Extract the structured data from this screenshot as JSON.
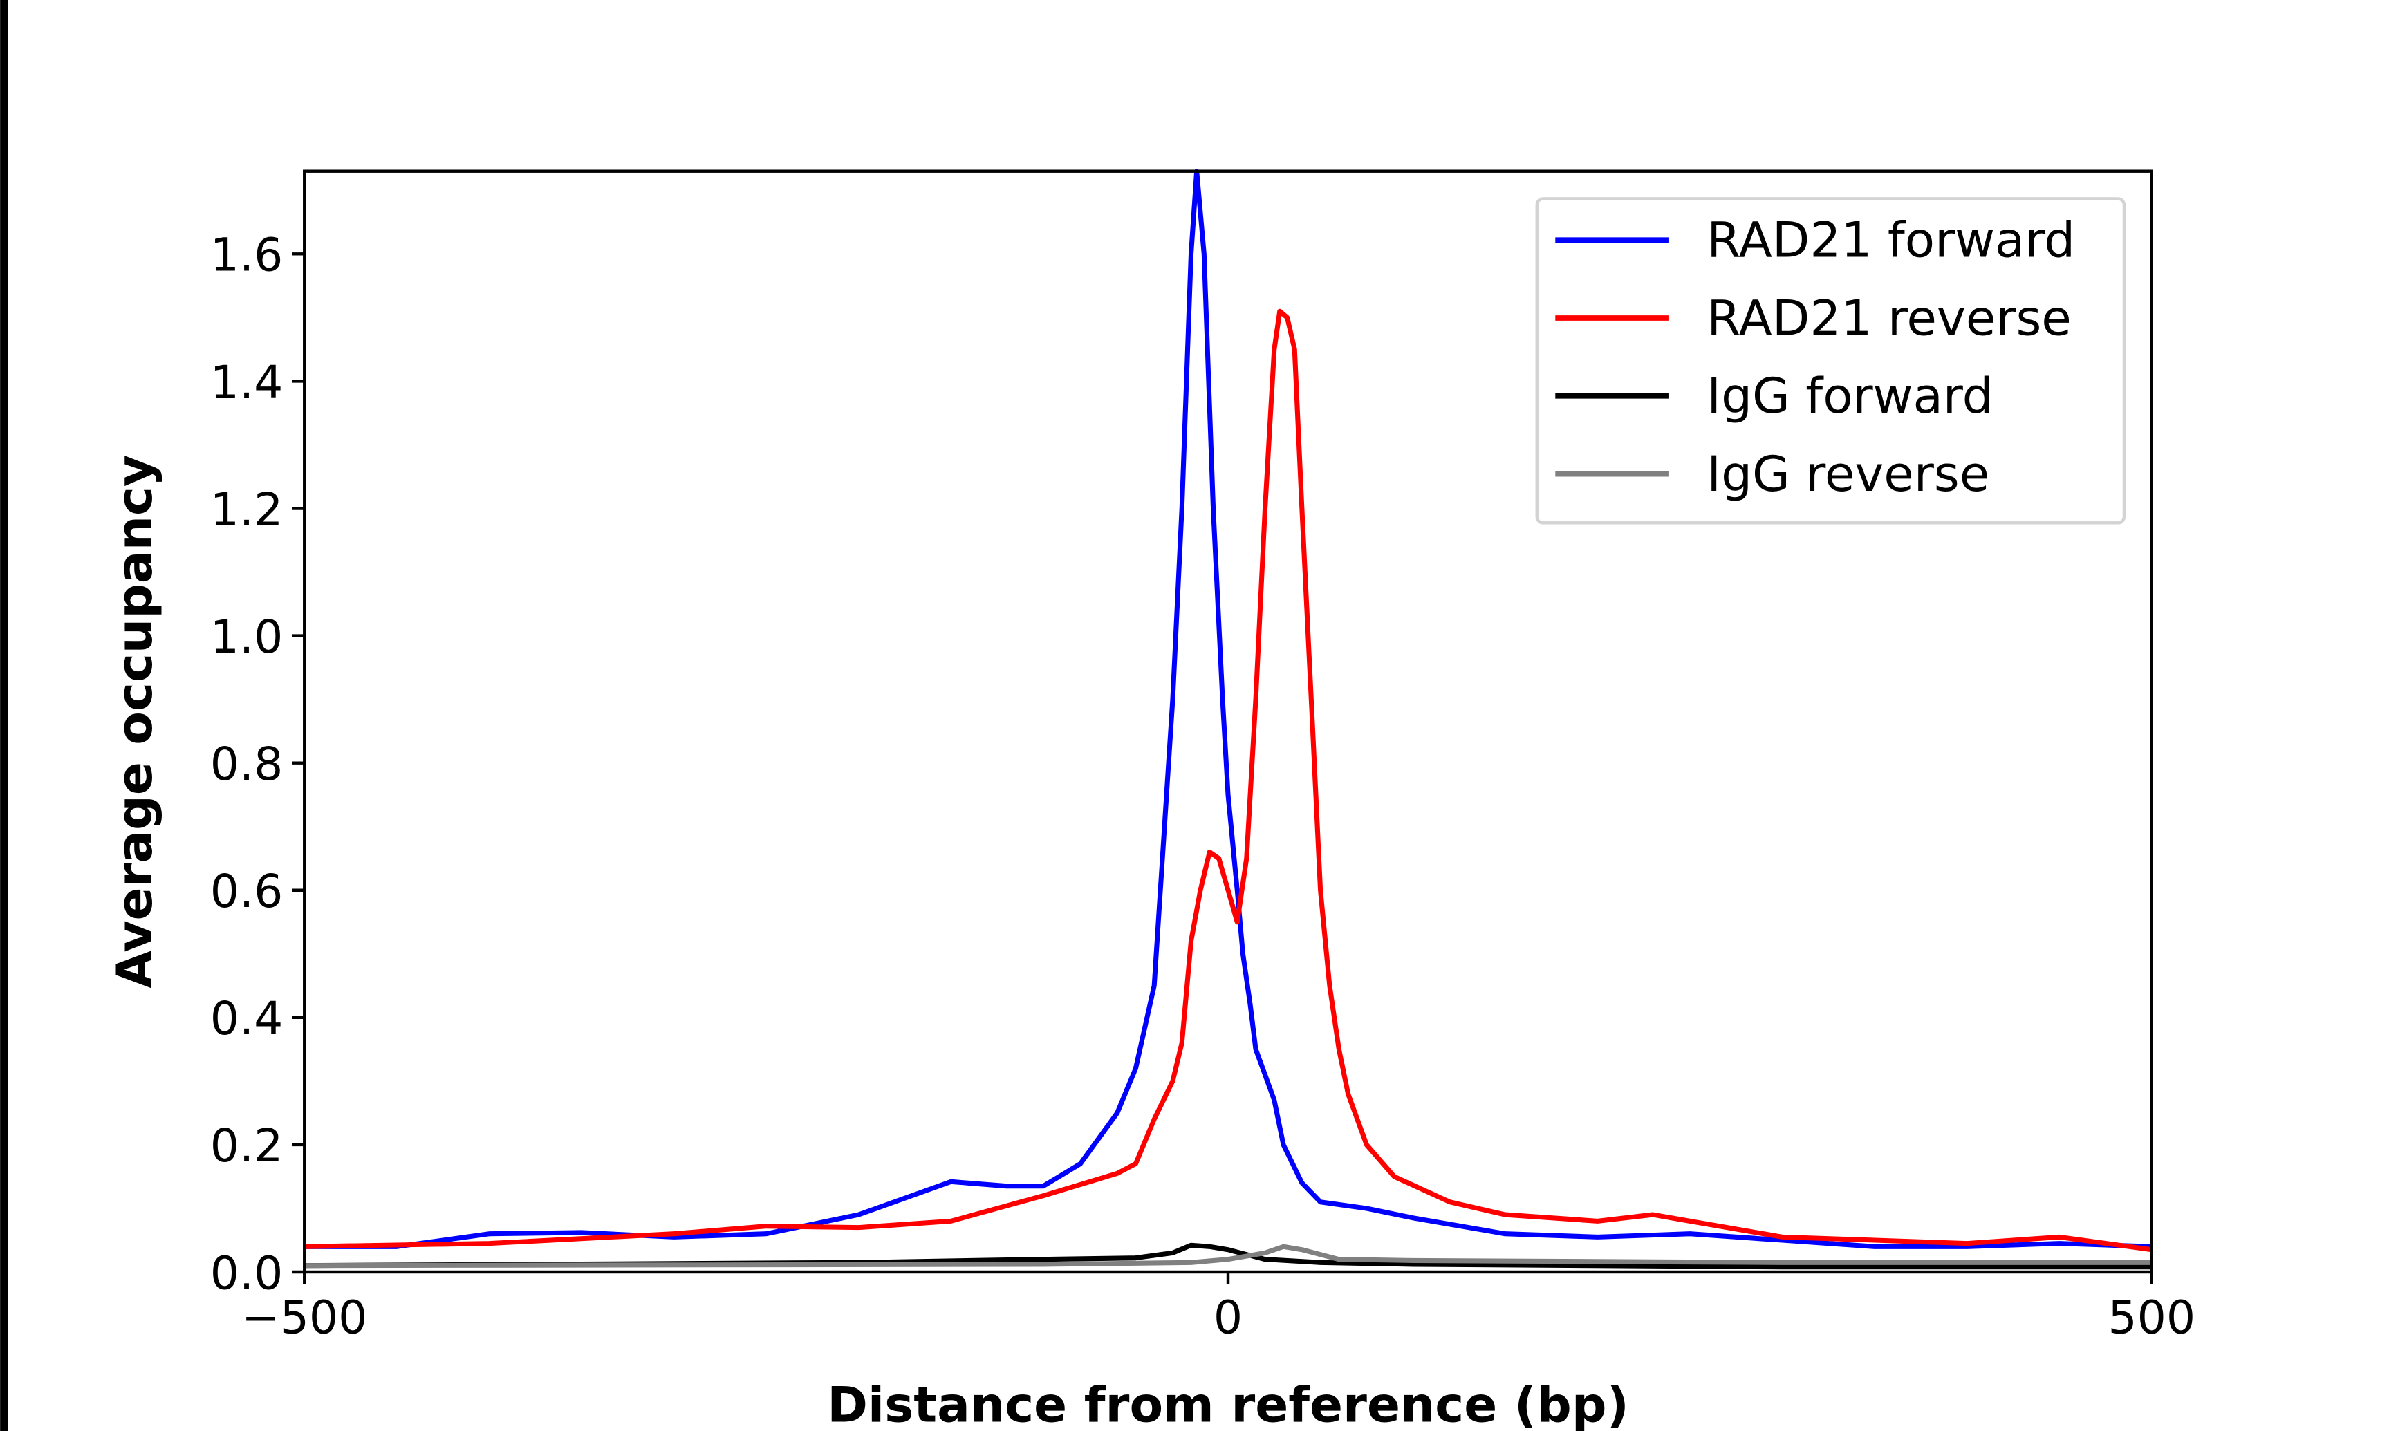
{
  "chart_data": {
    "type": "line",
    "title": "",
    "xlabel": "Distance from reference (bp)",
    "ylabel": "Average occupancy",
    "xlim": [
      -500,
      500
    ],
    "ylim": [
      0,
      1.73
    ],
    "xticks": [
      -500,
      0,
      500
    ],
    "xtick_labels": [
      "−500",
      "0",
      "500"
    ],
    "yticks": [
      0,
      0.2,
      0.4,
      0.6,
      0.8,
      1.0,
      1.2,
      1.4,
      1.6
    ],
    "ytick_labels": [
      "0.0",
      "0.2",
      "0.4",
      "0.6",
      "0.8",
      "1.0",
      "1.2",
      "1.4",
      "1.6"
    ],
    "grid": false,
    "legend_position": "upper-right",
    "series": [
      {
        "name": "RAD21 forward",
        "color": "#0000ff",
        "x": [
          -500,
          -450,
          -400,
          -350,
          -300,
          -250,
          -200,
          -150,
          -120,
          -100,
          -80,
          -60,
          -50,
          -40,
          -30,
          -25,
          -20,
          -17,
          -13,
          -8,
          -3,
          0,
          5,
          8,
          12,
          15,
          20,
          25,
          30,
          40,
          50,
          75,
          100,
          150,
          200,
          250,
          300,
          350,
          400,
          450,
          500
        ],
        "y": [
          0.04,
          0.04,
          0.06,
          0.062,
          0.055,
          0.06,
          0.09,
          0.142,
          0.135,
          0.135,
          0.17,
          0.25,
          0.32,
          0.45,
          0.9,
          1.2,
          1.6,
          1.73,
          1.6,
          1.2,
          0.9,
          0.75,
          0.6,
          0.5,
          0.42,
          0.35,
          0.31,
          0.27,
          0.2,
          0.14,
          0.11,
          0.1,
          0.085,
          0.06,
          0.055,
          0.06,
          0.05,
          0.04,
          0.04,
          0.045,
          0.04
        ]
      },
      {
        "name": "RAD21 reverse",
        "color": "#ff0000",
        "x": [
          -500,
          -400,
          -300,
          -250,
          -200,
          -150,
          -100,
          -60,
          -50,
          -40,
          -30,
          -25,
          -20,
          -15,
          -10,
          -5,
          0,
          5,
          10,
          15,
          20,
          25,
          28,
          32,
          36,
          40,
          45,
          50,
          55,
          60,
          65,
          75,
          90,
          120,
          150,
          200,
          230,
          250,
          300,
          350,
          400,
          450,
          500
        ],
        "y": [
          0.04,
          0.045,
          0.06,
          0.072,
          0.07,
          0.08,
          0.12,
          0.155,
          0.17,
          0.24,
          0.3,
          0.36,
          0.52,
          0.6,
          0.66,
          0.65,
          0.6,
          0.55,
          0.65,
          0.9,
          1.2,
          1.45,
          1.51,
          1.5,
          1.45,
          1.2,
          0.9,
          0.6,
          0.45,
          0.35,
          0.28,
          0.2,
          0.15,
          0.11,
          0.09,
          0.08,
          0.09,
          0.08,
          0.055,
          0.05,
          0.045,
          0.055,
          0.035
        ]
      },
      {
        "name": "IgG forward",
        "color": "#000000",
        "x": [
          -500,
          -200,
          -100,
          -50,
          -30,
          -20,
          -10,
          0,
          20,
          50,
          100,
          200,
          300,
          500
        ],
        "y": [
          0.01,
          0.015,
          0.02,
          0.022,
          0.03,
          0.042,
          0.04,
          0.035,
          0.02,
          0.015,
          0.012,
          0.01,
          0.008,
          0.008
        ]
      },
      {
        "name": "IgG reverse",
        "color": "#808080",
        "x": [
          -500,
          -100,
          -20,
          0,
          20,
          30,
          40,
          60,
          100,
          300,
          500
        ],
        "y": [
          0.01,
          0.012,
          0.015,
          0.02,
          0.03,
          0.04,
          0.035,
          0.02,
          0.018,
          0.015,
          0.015
        ]
      }
    ]
  }
}
